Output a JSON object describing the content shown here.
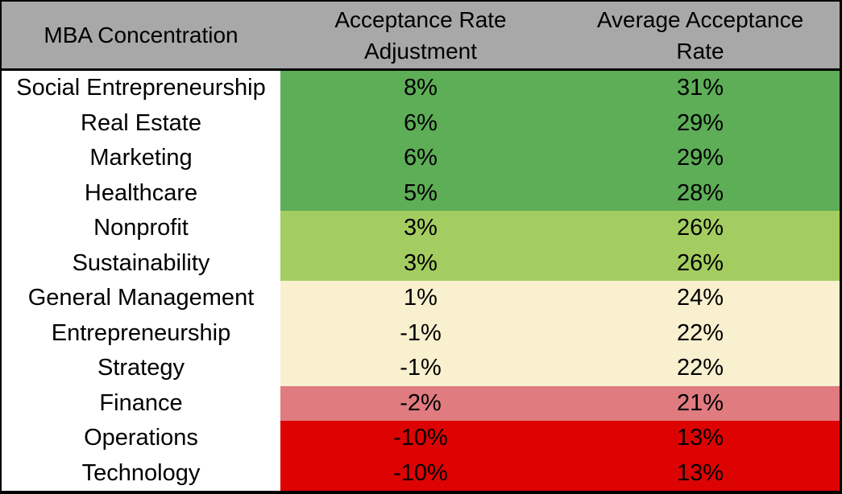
{
  "table": {
    "header": {
      "col1": "MBA Concentration",
      "col2": [
        "Acceptance Rate",
        "Adjustment"
      ],
      "col3": [
        "Average Acceptance",
        "Rate"
      ]
    },
    "rows": [
      {
        "concentration": "Social Entrepreneurship",
        "adjustment": "8%",
        "avg_rate": "31%",
        "tier": "green"
      },
      {
        "concentration": "Real Estate",
        "adjustment": "6%",
        "avg_rate": "29%",
        "tier": "green"
      },
      {
        "concentration": "Marketing",
        "adjustment": "6%",
        "avg_rate": "29%",
        "tier": "green"
      },
      {
        "concentration": "Healthcare",
        "adjustment": "5%",
        "avg_rate": "28%",
        "tier": "green"
      },
      {
        "concentration": "Nonprofit",
        "adjustment": "3%",
        "avg_rate": "26%",
        "tier": "light_green"
      },
      {
        "concentration": "Sustainability",
        "adjustment": "3%",
        "avg_rate": "26%",
        "tier": "light_green"
      },
      {
        "concentration": "General Management",
        "adjustment": "1%",
        "avg_rate": "24%",
        "tier": "cream"
      },
      {
        "concentration": "Entrepreneurship",
        "adjustment": "-1%",
        "avg_rate": "22%",
        "tier": "cream"
      },
      {
        "concentration": "Strategy",
        "adjustment": "-1%",
        "avg_rate": "22%",
        "tier": "cream"
      },
      {
        "concentration": "Finance",
        "adjustment": "-2%",
        "avg_rate": "21%",
        "tier": "pink"
      },
      {
        "concentration": "Operations",
        "adjustment": "-10%",
        "avg_rate": "13%",
        "tier": "red"
      },
      {
        "concentration": "Technology",
        "adjustment": "-10%",
        "avg_rate": "13%",
        "tier": "red"
      }
    ]
  },
  "colors": {
    "header_bg": "#A8A8A8",
    "name_col_bg": "#FFFFFF",
    "border": "#000000",
    "text": "#000000",
    "green": "#5EAD57",
    "light_green": "#A4CD61",
    "cream": "#F8F0CE",
    "pink": "#E07B80",
    "red": "#DD0303"
  },
  "chart_data": {
    "type": "table",
    "title": "MBA acceptance rate by concentration",
    "columns": [
      "MBA Concentration",
      "Acceptance Rate Adjustment",
      "Average Acceptance Rate"
    ],
    "units": "percent",
    "rows": [
      [
        "Social Entrepreneurship",
        8,
        31
      ],
      [
        "Real Estate",
        6,
        29
      ],
      [
        "Marketing",
        6,
        29
      ],
      [
        "Healthcare",
        5,
        28
      ],
      [
        "Nonprofit",
        3,
        26
      ],
      [
        "Sustainability",
        3,
        26
      ],
      [
        "General Management",
        1,
        24
      ],
      [
        "Entrepreneurship",
        -1,
        22
      ],
      [
        "Strategy",
        -1,
        22
      ],
      [
        "Finance",
        -2,
        21
      ],
      [
        "Operations",
        -10,
        13
      ],
      [
        "Technology",
        -10,
        13
      ]
    ],
    "layout_hints": {
      "row_color_tiers": [
        "green",
        "green",
        "green",
        "green",
        "light_green",
        "light_green",
        "cream",
        "cream",
        "cream",
        "pink",
        "red",
        "red"
      ],
      "grid": "off",
      "value_columns_background": "tier color",
      "name_column_background": "white"
    }
  }
}
